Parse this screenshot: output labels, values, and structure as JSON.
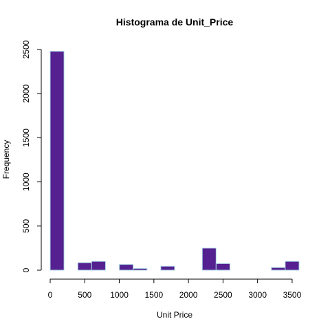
{
  "chart_data": {
    "type": "bar",
    "title": "Histograma de Unit_Price",
    "xlabel": "Unit Price",
    "ylabel": "Frequency",
    "bin_width": 200,
    "bins": [
      {
        "start": 0,
        "end": 200,
        "count": 2480
      },
      {
        "start": 200,
        "end": 400,
        "count": 0
      },
      {
        "start": 400,
        "end": 600,
        "count": 85
      },
      {
        "start": 600,
        "end": 800,
        "count": 100
      },
      {
        "start": 800,
        "end": 1000,
        "count": 0
      },
      {
        "start": 1000,
        "end": 1200,
        "count": 65
      },
      {
        "start": 1200,
        "end": 1400,
        "count": 20
      },
      {
        "start": 1400,
        "end": 1600,
        "count": 0
      },
      {
        "start": 1600,
        "end": 1800,
        "count": 45
      },
      {
        "start": 1800,
        "end": 2000,
        "count": 0
      },
      {
        "start": 2000,
        "end": 2200,
        "count": 0
      },
      {
        "start": 2200,
        "end": 2400,
        "count": 250
      },
      {
        "start": 2400,
        "end": 2600,
        "count": 75
      },
      {
        "start": 2600,
        "end": 2800,
        "count": 0
      },
      {
        "start": 2800,
        "end": 3000,
        "count": 0
      },
      {
        "start": 3000,
        "end": 3200,
        "count": 0
      },
      {
        "start": 3200,
        "end": 3400,
        "count": 30
      },
      {
        "start": 3400,
        "end": 3600,
        "count": 100
      }
    ],
    "x_ticks": [
      0,
      500,
      1000,
      1500,
      2000,
      2500,
      3000,
      3500
    ],
    "y_ticks": [
      0,
      500,
      1000,
      1500,
      2000,
      2500
    ],
    "xlim": [
      0,
      3600
    ],
    "ylim": [
      0,
      2500
    ],
    "grid": false,
    "bar_color": "#55208f",
    "bar_border_color": "#add8e6"
  }
}
